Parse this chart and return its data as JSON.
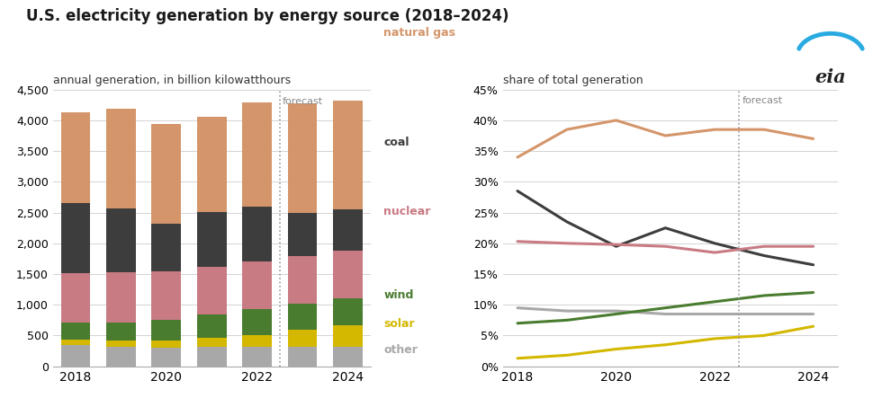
{
  "years": [
    2018,
    2019,
    2020,
    2021,
    2022,
    2023,
    2024
  ],
  "forecast_after": 2022,
  "bar_data": {
    "other": [
      340,
      310,
      300,
      310,
      310,
      320,
      310
    ],
    "solar": [
      90,
      105,
      120,
      150,
      190,
      270,
      360
    ],
    "wind": [
      275,
      300,
      338,
      380,
      434,
      425,
      430
    ],
    "nuclear": [
      808,
      810,
      790,
      778,
      775,
      775,
      775
    ],
    "coal": [
      1146,
      1040,
      774,
      895,
      893,
      700,
      680
    ],
    "natural_gas": [
      1468,
      1620,
      1617,
      1550,
      1690,
      1790,
      1760
    ]
  },
  "line_data": {
    "natural_gas": [
      34.0,
      38.5,
      40.0,
      37.5,
      38.5,
      38.5,
      37.0
    ],
    "coal": [
      28.5,
      23.5,
      19.5,
      22.5,
      20.0,
      18.0,
      16.5
    ],
    "nuclear": [
      20.3,
      20.0,
      19.8,
      19.5,
      18.5,
      19.5,
      19.5
    ],
    "wind": [
      7.0,
      7.5,
      8.5,
      9.5,
      10.5,
      11.5,
      12.0
    ],
    "other": [
      9.5,
      9.0,
      9.0,
      8.5,
      8.5,
      8.5,
      8.5
    ],
    "solar": [
      1.3,
      1.8,
      2.8,
      3.5,
      4.5,
      5.0,
      6.5
    ]
  },
  "colors": {
    "natural_gas": "#D4956A",
    "coal": "#3D3D3D",
    "nuclear": "#C97B84",
    "wind": "#4A7C2F",
    "solar": "#D4B800",
    "other": "#A8A8A8"
  },
  "label_names": {
    "natural_gas": "natural gas",
    "coal": "coal",
    "nuclear": "nuclear",
    "wind": "wind",
    "solar": "solar",
    "other": "other"
  },
  "title": "U.S. electricity generation by energy source (2018–2024)",
  "bar_subtitle": "annual generation, in billion kilowatthours",
  "line_subtitle": "share of total generation",
  "bar_ylim": [
    0,
    4500
  ],
  "line_ylim": [
    0,
    45
  ],
  "bar_yticks": [
    0,
    500,
    1000,
    1500,
    2000,
    2500,
    3000,
    3500,
    4000,
    4500
  ],
  "line_yticks": [
    0,
    5,
    10,
    15,
    20,
    25,
    30,
    35,
    40,
    45
  ]
}
